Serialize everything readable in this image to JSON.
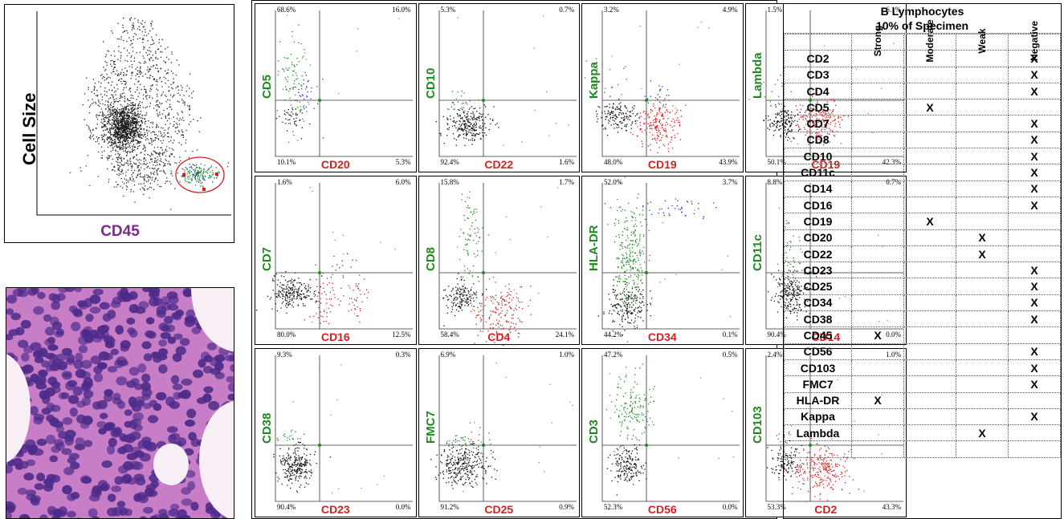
{
  "cd45_plot": {
    "y_label": "Cell Size",
    "x_label": "CD45"
  },
  "histology": {
    "colors": {
      "bg": "#f2dcef",
      "cytoplasm": "#c77ec6",
      "nucleus": "#4d2b8a",
      "space": "#f7eef6"
    }
  },
  "marker_plots": [
    {
      "y_marker": "CD5",
      "x_marker": "CD20",
      "q": [
        "68.6%",
        "16.0%",
        "10.1%",
        "5.3%"
      ]
    },
    {
      "y_marker": "CD10",
      "x_marker": "CD22",
      "q": [
        "5.3%",
        "0.7%",
        "92.4%",
        "1.6%"
      ]
    },
    {
      "y_marker": "Kappa",
      "x_marker": "CD19",
      "q": [
        "3.2%",
        "4.9%",
        "48.0%",
        "43.9%"
      ]
    },
    {
      "y_marker": "Lambda",
      "x_marker": "CD19",
      "q": [
        "1.5%",
        "6.1%",
        "50.1%",
        "42.3%"
      ]
    },
    {
      "y_marker": "CD7",
      "x_marker": "CD16",
      "q": [
        "1.6%",
        "6.0%",
        "80.0%",
        "12.5%"
      ]
    },
    {
      "y_marker": "CD8",
      "x_marker": "CD4",
      "q": [
        "15.8%",
        "1.7%",
        "58.4%",
        "24.1%"
      ]
    },
    {
      "y_marker": "HLA-DR",
      "x_marker": "CD34",
      "q": [
        "52.0%",
        "3.7%",
        "44.2%",
        "0.1%"
      ]
    },
    {
      "y_marker": "CD11c",
      "x_marker": "CD14",
      "q": [
        "8.8%",
        "0.7%",
        "90.4%",
        "0.0%"
      ]
    },
    {
      "y_marker": "CD38",
      "x_marker": "CD23",
      "q": [
        "9.3%",
        "0.3%",
        "90.4%",
        "0.0%"
      ]
    },
    {
      "y_marker": "FMC7",
      "x_marker": "CD25",
      "q": [
        "6.9%",
        "1.0%",
        "91.2%",
        "0.9%"
      ]
    },
    {
      "y_marker": "CD3",
      "x_marker": "CD56",
      "q": [
        "47.2%",
        "0.5%",
        "52.3%",
        "0.0%"
      ]
    },
    {
      "y_marker": "CD103",
      "x_marker": "CD2",
      "q": [
        "2.4%",
        "1.0%",
        "53.3%",
        "43.3%"
      ]
    }
  ],
  "marker_table": {
    "title_line1": "B Lymphocytes",
    "title_line2": "10% of Specimen",
    "columns": [
      "Strong",
      "Moderate",
      "Weak",
      "Negative"
    ],
    "mark": "X",
    "rows": [
      {
        "marker": "CD2",
        "level": 3
      },
      {
        "marker": "CD3",
        "level": 3
      },
      {
        "marker": "CD4",
        "level": 3
      },
      {
        "marker": "CD5",
        "level": 1
      },
      {
        "marker": "CD7",
        "level": 3
      },
      {
        "marker": "CD8",
        "level": 3
      },
      {
        "marker": "CD10",
        "level": 3
      },
      {
        "marker": "CD11c",
        "level": 3
      },
      {
        "marker": "CD14",
        "level": 3
      },
      {
        "marker": "CD16",
        "level": 3
      },
      {
        "marker": "CD19",
        "level": 1
      },
      {
        "marker": "CD20",
        "level": 2
      },
      {
        "marker": "CD22",
        "level": 2
      },
      {
        "marker": "CD23",
        "level": 3
      },
      {
        "marker": "CD25",
        "level": 3
      },
      {
        "marker": "CD34",
        "level": 3
      },
      {
        "marker": "CD38",
        "level": 3
      },
      {
        "marker": "CD45",
        "level": 0
      },
      {
        "marker": "CD56",
        "level": 3
      },
      {
        "marker": "CD103",
        "level": 3
      },
      {
        "marker": "FMC7",
        "level": 3
      },
      {
        "marker": "HLA-DR",
        "level": 0
      },
      {
        "marker": "Kappa",
        "level": 3
      },
      {
        "marker": "Lambda",
        "level": 2
      }
    ]
  },
  "colors": {
    "gated_red": "#d42020",
    "green": "#1e8a1e",
    "blue": "#2a2ad0",
    "purple": "#7b2a8a"
  }
}
